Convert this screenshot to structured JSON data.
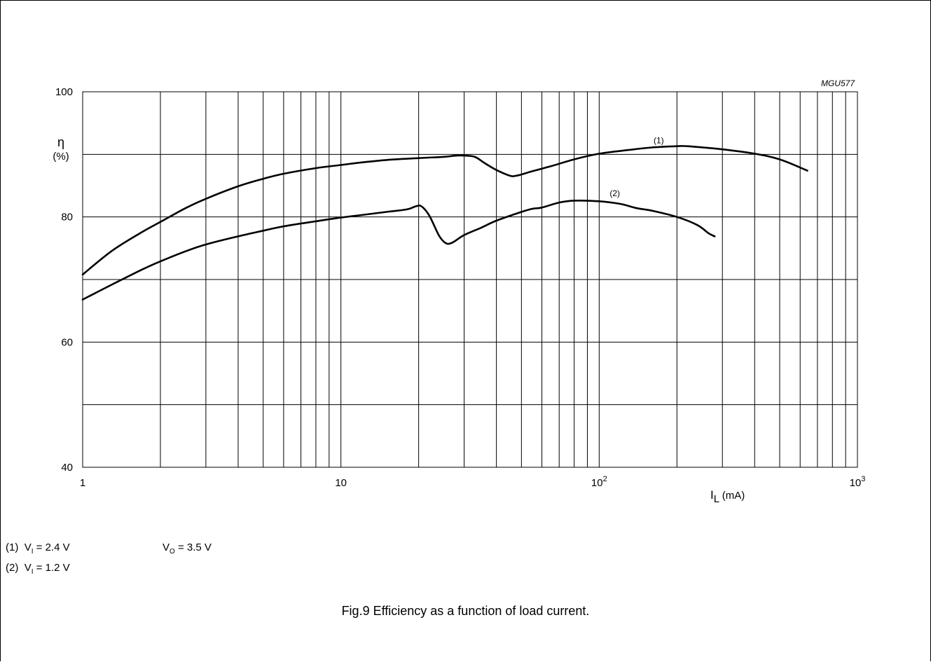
{
  "figure": {
    "code": "MGU577",
    "caption": "Fig.9  Efficiency as a function of load current."
  },
  "notes": {
    "n1_label": "(1)",
    "n1_vi": "V",
    "n1_vi_sub": "I",
    "n1_vi_val": " = 2.4 V",
    "n1_vo": "V",
    "n1_vo_sub": "O",
    "n1_vo_val": " = 3.5 V",
    "n2_label": "(2)",
    "n2_vi": "V",
    "n2_vi_sub": "I",
    "n2_vi_val": " = 1.2 V"
  },
  "chart_data": {
    "type": "line",
    "title": "",
    "xlabel": "I",
    "xlabel_sub": "L",
    "xlabel_unit": " (mA)",
    "ylabel": "η",
    "ylabel_unit": "(%)",
    "xscale": "log",
    "xlim": [
      1,
      1000
    ],
    "ylim": [
      40,
      100
    ],
    "grid": true,
    "x_ticks": [
      {
        "value": 1,
        "base": "1",
        "exp": ""
      },
      {
        "value": 10,
        "base": "10",
        "exp": ""
      },
      {
        "value": 100,
        "base": "10",
        "exp": "2"
      },
      {
        "value": 1000,
        "base": "10",
        "exp": "3"
      }
    ],
    "y_ticks": [
      {
        "value": 40,
        "label": "40"
      },
      {
        "value": 60,
        "label": "60"
      },
      {
        "value": 80,
        "label": "80"
      },
      {
        "value": 100,
        "label": "100"
      }
    ],
    "y_minor": [
      50,
      70,
      90
    ],
    "series": [
      {
        "name": "(1)",
        "label_at": [
          170,
          91.8
        ],
        "points": [
          [
            1,
            70.8
          ],
          [
            1.3,
            74.6
          ],
          [
            1.7,
            77.6
          ],
          [
            2,
            79.2
          ],
          [
            2.5,
            81.4
          ],
          [
            3,
            82.9
          ],
          [
            4,
            84.9
          ],
          [
            5,
            86.1
          ],
          [
            6,
            86.9
          ],
          [
            8,
            87.8
          ],
          [
            10,
            88.3
          ],
          [
            12,
            88.7
          ],
          [
            15,
            89.1
          ],
          [
            20,
            89.4
          ],
          [
            25,
            89.6
          ],
          [
            28,
            89.8
          ],
          [
            30,
            89.8
          ],
          [
            33,
            89.6
          ],
          [
            36,
            88.6
          ],
          [
            40,
            87.5
          ],
          [
            45,
            86.6
          ],
          [
            48,
            86.6
          ],
          [
            55,
            87.3
          ],
          [
            65,
            88.1
          ],
          [
            80,
            89.2
          ],
          [
            100,
            90.1
          ],
          [
            130,
            90.7
          ],
          [
            160,
            91.1
          ],
          [
            200,
            91.3
          ],
          [
            220,
            91.3
          ],
          [
            300,
            90.8
          ],
          [
            400,
            90.1
          ],
          [
            500,
            89.2
          ],
          [
            640,
            87.4
          ]
        ]
      },
      {
        "name": "(2)",
        "label_at": [
          115,
          83.3
        ],
        "points": [
          [
            1,
            66.8
          ],
          [
            1.3,
            69.2
          ],
          [
            1.7,
            71.6
          ],
          [
            2,
            72.9
          ],
          [
            2.5,
            74.5
          ],
          [
            3,
            75.6
          ],
          [
            4,
            76.9
          ],
          [
            5,
            77.8
          ],
          [
            6,
            78.5
          ],
          [
            8,
            79.3
          ],
          [
            10,
            79.9
          ],
          [
            12,
            80.3
          ],
          [
            15,
            80.8
          ],
          [
            18,
            81.2
          ],
          [
            19.5,
            81.7
          ],
          [
            20.5,
            81.7
          ],
          [
            22,
            80.2
          ],
          [
            24,
            77
          ],
          [
            25.5,
            75.8
          ],
          [
            27,
            75.9
          ],
          [
            30,
            77.1
          ],
          [
            35,
            78.3
          ],
          [
            40,
            79.4
          ],
          [
            50,
            80.8
          ],
          [
            55,
            81.3
          ],
          [
            60,
            81.5
          ],
          [
            70,
            82.3
          ],
          [
            80,
            82.6
          ],
          [
            100,
            82.5
          ],
          [
            120,
            82.1
          ],
          [
            140,
            81.4
          ],
          [
            160,
            81
          ],
          [
            200,
            80
          ],
          [
            240,
            78.7
          ],
          [
            265,
            77.4
          ],
          [
            280,
            76.9
          ]
        ]
      }
    ]
  }
}
